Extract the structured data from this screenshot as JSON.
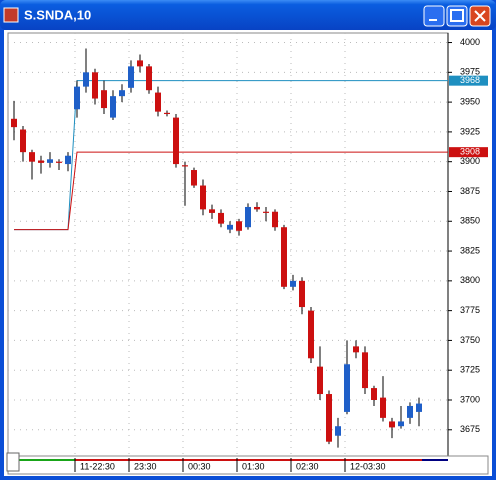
{
  "chart_data": {
    "type": "candlestick",
    "title": "S.SNDA,10",
    "categories": [
      null,
      null,
      null,
      null,
      null,
      null,
      null,
      "11-22:30",
      null,
      null,
      null,
      null,
      null,
      "23:30",
      null,
      null,
      null,
      null,
      null,
      "00:30",
      null,
      null,
      null,
      null,
      null,
      "01:30",
      null,
      null,
      null,
      null,
      null,
      "02:30",
      null,
      null,
      null,
      null,
      null,
      "12-03:30",
      null,
      null,
      null,
      null,
      null,
      null,
      null,
      null
    ],
    "open": [
      3936,
      3927,
      3908,
      3901,
      3899,
      3900,
      3898,
      3944,
      3963,
      3975,
      3960,
      3937,
      3955,
      3962,
      3985,
      3980,
      3958,
      3941,
      3937,
      3897,
      3893,
      3880,
      3860,
      3857,
      3843,
      3850,
      3845,
      3862,
      3858,
      3858,
      3845,
      3795,
      3800,
      3775,
      3728,
      3705,
      3670,
      3690,
      3745,
      3740,
      3710,
      3702,
      3682,
      3678,
      3685,
      3690
    ],
    "high": [
      3951,
      3930,
      3910,
      3905,
      3908,
      3902,
      3908,
      3968,
      3995,
      3978,
      3968,
      3960,
      3965,
      3985,
      3990,
      3982,
      3963,
      3943,
      3940,
      3900,
      3895,
      3885,
      3864,
      3860,
      3850,
      3852,
      3865,
      3866,
      3862,
      3860,
      3847,
      3805,
      3803,
      3778,
      3745,
      3708,
      3685,
      3750,
      3750,
      3745,
      3712,
      3720,
      3685,
      3695,
      3698,
      3702
    ],
    "low": [
      3918,
      3900,
      3885,
      3890,
      3895,
      3893,
      3892,
      3937,
      3958,
      3948,
      3940,
      3935,
      3950,
      3958,
      3975,
      3957,
      3938,
      3938,
      3895,
      3863,
      3878,
      3855,
      3852,
      3845,
      3840,
      3838,
      3843,
      3858,
      3850,
      3842,
      3793,
      3792,
      3772,
      3731,
      3700,
      3663,
      3660,
      3688,
      3735,
      3705,
      3695,
      3682,
      3668,
      3676,
      3680,
      3678
    ],
    "close": [
      3929,
      3908,
      3900,
      3899,
      3902,
      3899,
      3905,
      3963,
      3975,
      3953,
      3945,
      3955,
      3960,
      3980,
      3980,
      3960,
      3942,
      3940,
      3898,
      3896,
      3880,
      3860,
      3857,
      3848,
      3847,
      3842,
      3862,
      3860,
      3857,
      3845,
      3795,
      3800,
      3778,
      3735,
      3705,
      3665,
      3678,
      3730,
      3740,
      3710,
      3700,
      3685,
      3677,
      3682,
      3695,
      3697
    ],
    "up_color": "#1f5fc8",
    "down_color": "#cc1010",
    "lines": [
      {
        "color": "#1e8fc0",
        "values": [
          3843,
          3843,
          3843,
          3843,
          3843,
          3843,
          3843,
          3968,
          3968,
          3968,
          3968,
          3968,
          3968,
          3968,
          3968,
          3968,
          3968,
          3968,
          3968,
          3968,
          3968,
          3968,
          3968,
          3968,
          3968,
          3968,
          3968,
          3968,
          3968,
          3968,
          3968,
          3968,
          3968,
          3968,
          3968,
          3968,
          3968,
          3968,
          3968,
          3968,
          3968,
          3968,
          3968,
          3968,
          3968,
          3968
        ]
      },
      {
        "color": "#cc1010",
        "values": [
          3843,
          3843,
          3843,
          3843,
          3843,
          3843,
          3843,
          3908,
          3908,
          3908,
          3908,
          3908,
          3908,
          3908,
          3908,
          3908,
          3908,
          3908,
          3908,
          3908,
          3908,
          3908,
          3908,
          3908,
          3908,
          3908,
          3908,
          3908,
          3908,
          3908,
          3908,
          3908,
          3908,
          3908,
          3908,
          3908,
          3908,
          3908,
          3908,
          3908,
          3908,
          3908,
          3908,
          3908,
          3908,
          3908
        ]
      }
    ],
    "ylim": [
      3653,
      4008
    ],
    "yticks": [
      3675,
      3700,
      3725,
      3750,
      3775,
      3800,
      3825,
      3850,
      3875,
      3900,
      3925,
      3950,
      3975,
      4000
    ],
    "grid": true
  }
}
